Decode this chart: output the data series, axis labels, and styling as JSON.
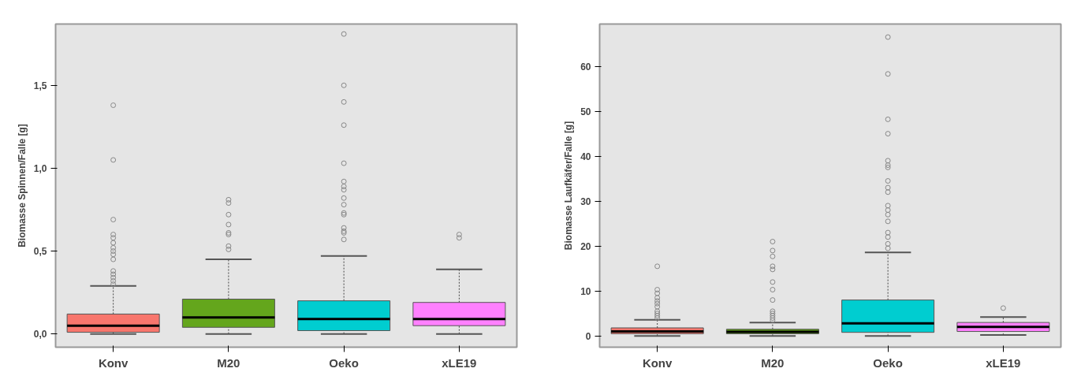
{
  "chart_data": [
    {
      "type": "box",
      "ylabel": "Biomasse Spinnen/Falle [g]",
      "categories": [
        "Konv",
        "M20",
        "Oeko",
        "xLE19"
      ],
      "colors": [
        "#f8766d",
        "#64a61c",
        "#00cdd0",
        "#ff80ff"
      ],
      "ylim": [
        -0.08,
        1.87
      ],
      "yticks": [
        {
          "value": 0,
          "label": "0,0"
        },
        {
          "value": 0.5,
          "label": "0,5"
        },
        {
          "value": 1,
          "label": "1,0"
        },
        {
          "value": 1.5,
          "label": "1,5"
        }
      ],
      "grid": false,
      "boxes": [
        {
          "low": 0,
          "q1": 0.01,
          "median": 0.05,
          "q3": 0.12,
          "high": 0.29,
          "outliers": [
            1.38,
            1.05,
            0.69,
            0.6,
            0.58,
            0.55,
            0.52,
            0.5,
            0.48,
            0.45,
            0.38,
            0.36,
            0.34,
            0.32,
            0.3
          ]
        },
        {
          "low": 0,
          "q1": 0.04,
          "median": 0.1,
          "q3": 0.21,
          "high": 0.45,
          "outliers": [
            0.81,
            0.79,
            0.72,
            0.66,
            0.61,
            0.6,
            0.53,
            0.51
          ]
        },
        {
          "low": 0,
          "q1": 0.02,
          "median": 0.09,
          "q3": 0.2,
          "high": 0.47,
          "outliers": [
            1.81,
            1.5,
            1.4,
            1.26,
            1.03,
            0.92,
            0.89,
            0.87,
            0.82,
            0.78,
            0.73,
            0.72,
            0.64,
            0.62,
            0.61,
            0.57
          ]
        },
        {
          "low": 0,
          "q1": 0.05,
          "median": 0.09,
          "q3": 0.19,
          "high": 0.39,
          "outliers": [
            0.6,
            0.58
          ]
        }
      ]
    },
    {
      "type": "box",
      "ylabel": "Biomasse Laufkäfer/Falle [g]",
      "categories": [
        "Konv",
        "M20",
        "Oeko",
        "xLE19"
      ],
      "colors": [
        "#f8766d",
        "#64a61c",
        "#00cdd0",
        "#ff80ff"
      ],
      "ylim": [
        -2.5,
        69.4
      ],
      "yticks": [
        0,
        10,
        20,
        30,
        40,
        50,
        60
      ],
      "grid": false,
      "boxes": [
        {
          "low": 0,
          "q1": 0.5,
          "median": 1,
          "q3": 1.8,
          "high": 3.6,
          "outliers": [
            15.5,
            10.3,
            9.5,
            8.5,
            7.8,
            7.2,
            6.5,
            5.5,
            5,
            4.5,
            4
          ]
        },
        {
          "low": 0,
          "q1": 0.5,
          "median": 0.9,
          "q3": 1.5,
          "high": 3,
          "outliers": [
            21,
            19,
            17.7,
            15.5,
            14.8,
            12,
            10.3,
            8,
            5.5,
            5,
            4.5,
            4,
            3.5
          ]
        },
        {
          "low": 0,
          "q1": 0.8,
          "median": 2.8,
          "q3": 8,
          "high": 18.6,
          "outliers": [
            66.5,
            58.3,
            48.2,
            45,
            39,
            38,
            37.5,
            34.5,
            33,
            32,
            29,
            28,
            27,
            25.5,
            23,
            22,
            20.5,
            19.5
          ]
        },
        {
          "low": 0.2,
          "q1": 1,
          "median": 2,
          "q3": 3,
          "high": 4.2,
          "outliers": [
            6.2
          ]
        }
      ]
    }
  ]
}
